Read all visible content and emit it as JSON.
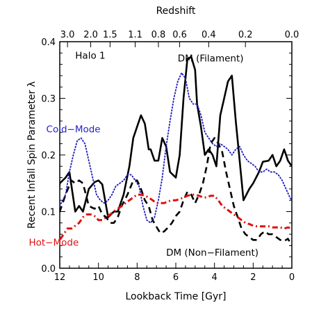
{
  "chart_data": {
    "type": "line",
    "xlabel": "Lookback Time [Gyr]",
    "ylabel": "Recent Infall Spin Parameter λ",
    "top_axis_label": "Redshift",
    "xlim": [
      12,
      0
    ],
    "ylim": [
      0.0,
      0.4
    ],
    "x_ticks": [
      12,
      10,
      8,
      6,
      4,
      2,
      0
    ],
    "y_ticks": [
      0.0,
      0.1,
      0.2,
      0.3,
      0.4
    ],
    "top_ticks": [
      {
        "label": "3.0",
        "lookback_gyr": 11.6
      },
      {
        "label": "2.0",
        "lookback_gyr": 10.4
      },
      {
        "label": "1.5",
        "lookback_gyr": 9.4
      },
      {
        "label": "1.1",
        "lookback_gyr": 8.1
      },
      {
        "label": "0.8",
        "lookback_gyr": 6.9
      },
      {
        "label": "0.6",
        "lookback_gyr": 5.8
      },
      {
        "label": "0.4",
        "lookback_gyr": 4.3
      },
      {
        "label": "0.2",
        "lookback_gyr": 2.4
      },
      {
        "label": "0.0",
        "lookback_gyr": 0.0
      }
    ],
    "grid": false,
    "annotations": [
      {
        "text": "Halo 1",
        "x": 11.2,
        "y": 0.37,
        "color": "#000000"
      },
      {
        "text": "DM (Filament)",
        "x": 5.9,
        "y": 0.365,
        "color": "#000000"
      },
      {
        "text": "Cold−Mode",
        "x": 12.7,
        "y": 0.24,
        "color": "#2222cc"
      },
      {
        "text": "Hot−Mode",
        "x": 13.6,
        "y": 0.04,
        "color": "#dd1111"
      },
      {
        "text": "DM (Non−Filament)",
        "x": 6.5,
        "y": 0.022,
        "color": "#000000"
      }
    ],
    "series": [
      {
        "style": "solid",
        "color": "#000000",
        "x": [
          12.2,
          12.0,
          11.7,
          11.5,
          11.2,
          11.0,
          10.8,
          10.5,
          10.2,
          10.0,
          9.8,
          9.5,
          9.2,
          9.0,
          8.7,
          8.4,
          8.2,
          8.0,
          7.8,
          7.6,
          7.4,
          7.3,
          7.1,
          6.9,
          6.7,
          6.5,
          6.3,
          6.0,
          5.8,
          5.6,
          5.4,
          5.2,
          5.0,
          4.9,
          4.7,
          4.5,
          4.3,
          4.1,
          3.9,
          3.7,
          3.5,
          3.3,
          3.1,
          2.9,
          2.7,
          2.5,
          2.2,
          2.0,
          1.7,
          1.5,
          1.2,
          1.0,
          0.8,
          0.6,
          0.4,
          0.2,
          0.0
        ],
        "y": [
          0.082,
          0.15,
          0.16,
          0.17,
          0.1,
          0.11,
          0.1,
          0.14,
          0.152,
          0.155,
          0.148,
          0.09,
          0.1,
          0.1,
          0.13,
          0.18,
          0.23,
          0.25,
          0.27,
          0.255,
          0.21,
          0.21,
          0.19,
          0.19,
          0.23,
          0.215,
          0.17,
          0.16,
          0.2,
          0.3,
          0.37,
          0.373,
          0.35,
          0.29,
          0.25,
          0.2,
          0.21,
          0.2,
          0.18,
          0.27,
          0.3,
          0.33,
          0.34,
          0.26,
          0.19,
          0.12,
          0.14,
          0.15,
          0.17,
          0.188,
          0.19,
          0.2,
          0.18,
          0.19,
          0.21,
          0.19,
          0.18
        ]
      },
      {
        "style": "dashed",
        "color": "#000000",
        "x": [
          12.2,
          12.0,
          11.7,
          11.4,
          11.2,
          11.0,
          10.8,
          10.5,
          10.2,
          10.0,
          9.8,
          9.6,
          9.4,
          9.2,
          9.0,
          8.8,
          8.5,
          8.2,
          8.0,
          7.8,
          7.6,
          7.4,
          7.2,
          7.0,
          6.8,
          6.6,
          6.4,
          6.2,
          6.0,
          5.8,
          5.6,
          5.4,
          5.2,
          5.0,
          4.8,
          4.6,
          4.4,
          4.2,
          4.0,
          3.8,
          3.6,
          3.4,
          3.2,
          3.0,
          2.8,
          2.6,
          2.4,
          2.2,
          2.0,
          1.8,
          1.6,
          1.4,
          1.2,
          1.0,
          0.8,
          0.6,
          0.4,
          0.2,
          0.0
        ],
        "y": [
          0.082,
          0.1,
          0.13,
          0.155,
          0.15,
          0.155,
          0.15,
          0.11,
          0.105,
          0.11,
          0.095,
          0.09,
          0.08,
          0.08,
          0.09,
          0.11,
          0.13,
          0.155,
          0.155,
          0.14,
          0.12,
          0.11,
          0.085,
          0.073,
          0.062,
          0.065,
          0.072,
          0.08,
          0.092,
          0.1,
          0.12,
          0.135,
          0.13,
          0.115,
          0.13,
          0.15,
          0.18,
          0.22,
          0.23,
          0.22,
          0.205,
          0.17,
          0.14,
          0.11,
          0.09,
          0.07,
          0.06,
          0.055,
          0.05,
          0.05,
          0.06,
          0.065,
          0.06,
          0.06,
          0.055,
          0.05,
          0.048,
          0.052,
          0.04
        ]
      },
      {
        "style": "dotted",
        "color": "#1e1ebe",
        "x": [
          12.2,
          12.0,
          11.7,
          11.5,
          11.3,
          11.1,
          10.9,
          10.7,
          10.5,
          10.3,
          10.1,
          9.9,
          9.7,
          9.5,
          9.3,
          9.1,
          8.9,
          8.7,
          8.5,
          8.3,
          8.1,
          7.9,
          7.7,
          7.5,
          7.3,
          7.1,
          6.9,
          6.7,
          6.5,
          6.3,
          6.1,
          5.9,
          5.7,
          5.5,
          5.3,
          5.1,
          4.9,
          4.7,
          4.5,
          4.3,
          4.1,
          3.9,
          3.7,
          3.5,
          3.3,
          3.1,
          2.9,
          2.7,
          2.5,
          2.3,
          2.1,
          1.9,
          1.7,
          1.5,
          1.3,
          1.1,
          0.9,
          0.7,
          0.5,
          0.3,
          0.1,
          0.0
        ],
        "y": [
          0.09,
          0.11,
          0.13,
          0.17,
          0.2,
          0.225,
          0.23,
          0.22,
          0.19,
          0.16,
          0.13,
          0.12,
          0.115,
          0.12,
          0.13,
          0.145,
          0.15,
          0.155,
          0.165,
          0.165,
          0.155,
          0.145,
          0.11,
          0.085,
          0.08,
          0.09,
          0.12,
          0.16,
          0.215,
          0.26,
          0.3,
          0.33,
          0.345,
          0.335,
          0.3,
          0.29,
          0.29,
          0.27,
          0.24,
          0.23,
          0.22,
          0.215,
          0.22,
          0.215,
          0.21,
          0.2,
          0.21,
          0.215,
          0.2,
          0.19,
          0.185,
          0.18,
          0.17,
          0.17,
          0.175,
          0.17,
          0.17,
          0.165,
          0.155,
          0.14,
          0.125,
          0.12
        ]
      },
      {
        "style": "dashdot",
        "color": "#e01010",
        "x": [
          12.2,
          12.0,
          11.8,
          11.6,
          11.4,
          11.2,
          11.0,
          10.8,
          10.6,
          10.4,
          10.2,
          10.0,
          9.8,
          9.6,
          9.4,
          9.2,
          9.0,
          8.8,
          8.6,
          8.4,
          8.2,
          8.0,
          7.8,
          7.6,
          7.4,
          7.2,
          7.0,
          6.8,
          6.6,
          6.4,
          6.2,
          6.0,
          5.8,
          5.6,
          5.4,
          5.2,
          5.0,
          4.8,
          4.6,
          4.4,
          4.2,
          4.0,
          3.8,
          3.6,
          3.4,
          3.2,
          3.0,
          2.8,
          2.6,
          2.4,
          2.2,
          2.0,
          1.8,
          1.6,
          1.4,
          1.2,
          1.0,
          0.8,
          0.6,
          0.4,
          0.2,
          0.0
        ],
        "y": [
          0.03,
          0.05,
          0.06,
          0.07,
          0.07,
          0.075,
          0.08,
          0.09,
          0.095,
          0.095,
          0.092,
          0.085,
          0.085,
          0.09,
          0.095,
          0.1,
          0.105,
          0.11,
          0.115,
          0.12,
          0.125,
          0.13,
          0.13,
          0.128,
          0.125,
          0.12,
          0.115,
          0.115,
          0.115,
          0.118,
          0.12,
          0.12,
          0.122,
          0.125,
          0.128,
          0.13,
          0.13,
          0.128,
          0.125,
          0.125,
          0.128,
          0.128,
          0.12,
          0.11,
          0.105,
          0.1,
          0.095,
          0.09,
          0.085,
          0.08,
          0.078,
          0.075,
          0.074,
          0.074,
          0.074,
          0.074,
          0.072,
          0.072,
          0.072,
          0.07,
          0.072,
          0.07
        ]
      }
    ]
  }
}
